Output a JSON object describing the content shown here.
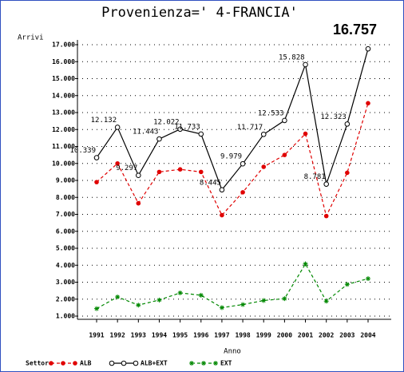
{
  "chart_data": {
    "type": "line",
    "title": "Provenienza=' 4-FRANCIA'",
    "y_label": "Arrivi",
    "x_label": "Anno",
    "legend_title": "Settore",
    "legend": "bottom",
    "grid": true,
    "categories": [
      "1991",
      "1992",
      "1993",
      "1994",
      "1995",
      "1996",
      "1997",
      "1998",
      "1999",
      "2000",
      "2001",
      "2002",
      "2003",
      "2004"
    ],
    "ylim": [
      1000,
      17000
    ],
    "yticks": [
      {
        "value": 1000,
        "label": "1.000"
      },
      {
        "value": 2000,
        "label": "2.000"
      },
      {
        "value": 3000,
        "label": "3.000"
      },
      {
        "value": 4000,
        "label": "4.000"
      },
      {
        "value": 5000,
        "label": "5.000"
      },
      {
        "value": 6000,
        "label": "6.000"
      },
      {
        "value": 7000,
        "label": "7.000"
      },
      {
        "value": 8000,
        "label": "8.000"
      },
      {
        "value": 9000,
        "label": "9.000"
      },
      {
        "value": 10000,
        "label": "10.000"
      },
      {
        "value": 11000,
        "label": "11.000"
      },
      {
        "value": 12000,
        "label": "12.000"
      },
      {
        "value": 13000,
        "label": "13.000"
      },
      {
        "value": 14000,
        "label": "14.000"
      },
      {
        "value": 15000,
        "label": "15.000"
      },
      {
        "value": 16000,
        "label": "16.000"
      },
      {
        "value": 17000,
        "label": "17.000"
      }
    ],
    "series": [
      {
        "name": "ALB",
        "color": "#e00000",
        "marker": "dot",
        "dashed": true,
        "values": [
          8900,
          10000,
          7650,
          9500,
          9650,
          9500,
          6950,
          8300,
          9800,
          10500,
          11750,
          6900,
          9450,
          13550
        ]
      },
      {
        "name": "ALB+EXT",
        "color": "#000000",
        "marker": "circle",
        "dashed": false,
        "values": [
          10339,
          12132,
          9297,
          11443,
          12022,
          11733,
          8445,
          9979,
          11717,
          12533,
          15828,
          8781,
          12323,
          16757
        ],
        "value_labels": [
          "10.339",
          "12.132",
          "9.297",
          "11.443",
          "12.022",
          "11.733",
          "8.445",
          "9.979",
          "11.717",
          "12.533",
          "15.828",
          "8.781",
          "12.323",
          "16.757"
        ]
      },
      {
        "name": "EXT",
        "color": "#008800",
        "marker": "star",
        "dashed": true,
        "values": [
          1440,
          2130,
          1650,
          1950,
          2370,
          2230,
          1500,
          1680,
          1920,
          2030,
          4080,
          1880,
          2870,
          3210
        ]
      }
    ]
  }
}
